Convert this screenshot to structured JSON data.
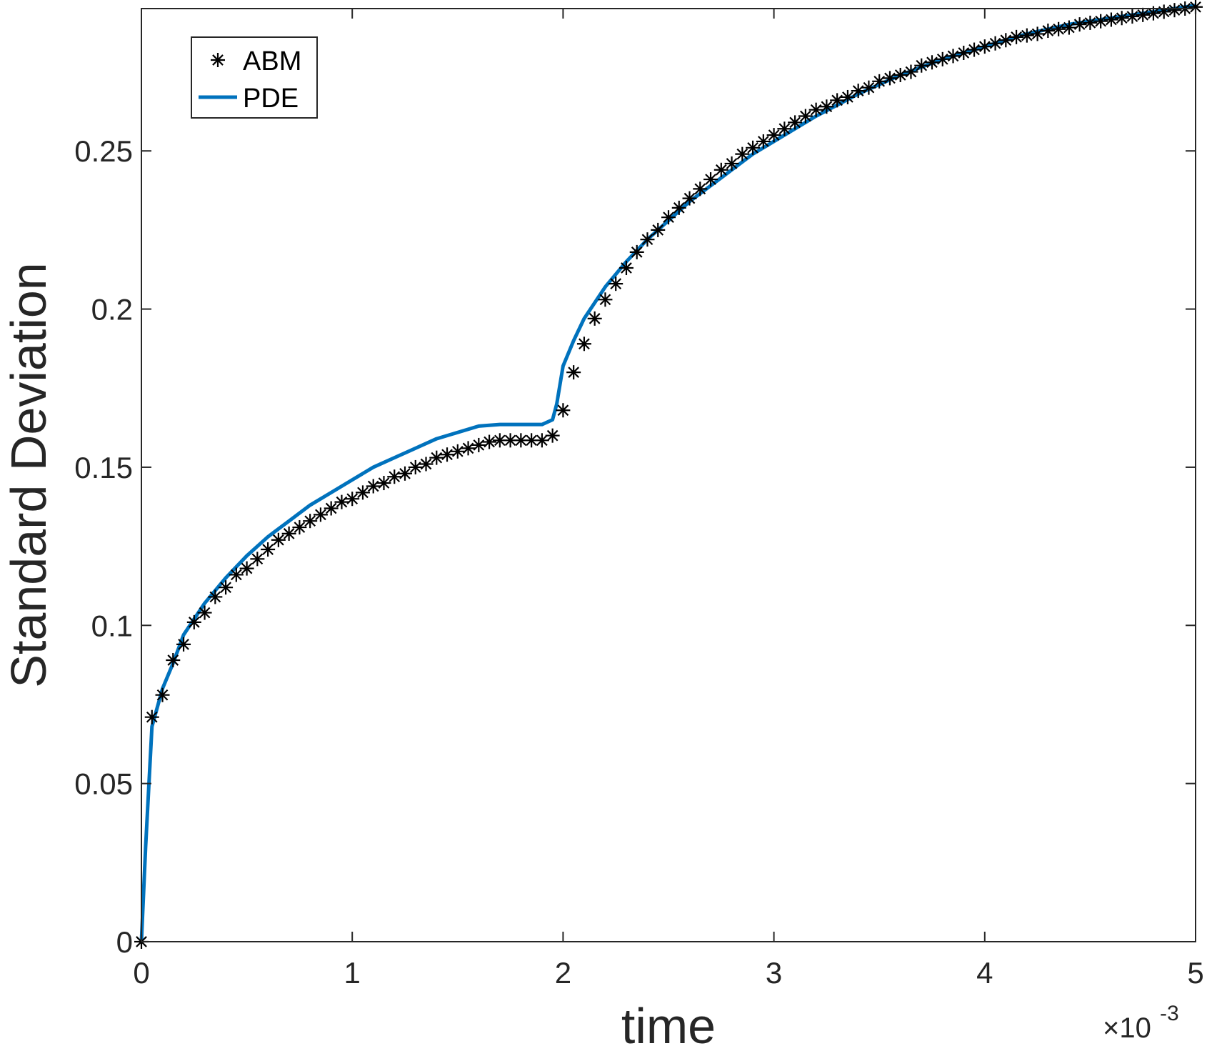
{
  "chart_data": {
    "type": "line",
    "title": "",
    "xlabel": "time",
    "ylabel": "Standard Deviation",
    "x_exponent_label": {
      "base": "×10",
      "power": "-3"
    },
    "xlim": [
      0,
      5
    ],
    "ylim": [
      0,
      0.295
    ],
    "x_ticks": [
      0,
      1,
      2,
      3,
      4,
      5
    ],
    "x_tick_labels": [
      "0",
      "1",
      "2",
      "3",
      "4",
      "5"
    ],
    "y_ticks": [
      0,
      0.05,
      0.1,
      0.15,
      0.2,
      0.25
    ],
    "y_tick_labels": [
      "0",
      "0.05",
      "0.1",
      "0.15",
      "0.2",
      "0.25"
    ],
    "grid": false,
    "legend_position": "top-left",
    "x_units_note": "x values in units of 10^-3",
    "series": [
      {
        "name": "PDE",
        "style": "line",
        "color": "#0072BD",
        "x": [
          0,
          0.02,
          0.05,
          0.1,
          0.15,
          0.2,
          0.3,
          0.4,
          0.5,
          0.6,
          0.7,
          0.8,
          0.9,
          1.0,
          1.1,
          1.2,
          1.3,
          1.4,
          1.5,
          1.6,
          1.7,
          1.8,
          1.9,
          1.95,
          1.97,
          2.0,
          2.05,
          2.1,
          2.2,
          2.3,
          2.4,
          2.5,
          2.6,
          2.7,
          2.8,
          2.9,
          3.0,
          3.2,
          3.4,
          3.6,
          3.8,
          4.0,
          4.2,
          4.4,
          4.6,
          4.8,
          5.0
        ],
        "y": [
          0,
          0.03,
          0.068,
          0.08,
          0.088,
          0.097,
          0.107,
          0.115,
          0.122,
          0.128,
          0.133,
          0.138,
          0.142,
          0.146,
          0.15,
          0.153,
          0.156,
          0.159,
          0.161,
          0.163,
          0.1635,
          0.1635,
          0.1635,
          0.165,
          0.17,
          0.182,
          0.19,
          0.197,
          0.207,
          0.215,
          0.222,
          0.228,
          0.234,
          0.239,
          0.244,
          0.249,
          0.253,
          0.261,
          0.268,
          0.274,
          0.279,
          0.283,
          0.287,
          0.29,
          0.292,
          0.294,
          0.296
        ]
      },
      {
        "name": "ABM",
        "style": "markers",
        "marker": "asterisk",
        "color": "#000000",
        "x": [
          0,
          0.05,
          0.1,
          0.15,
          0.2,
          0.25,
          0.3,
          0.35,
          0.4,
          0.45,
          0.5,
          0.55,
          0.6,
          0.65,
          0.7,
          0.75,
          0.8,
          0.85,
          0.9,
          0.95,
          1.0,
          1.05,
          1.1,
          1.15,
          1.2,
          1.25,
          1.3,
          1.35,
          1.4,
          1.45,
          1.5,
          1.55,
          1.6,
          1.65,
          1.7,
          1.75,
          1.8,
          1.85,
          1.9,
          1.95,
          2.0,
          2.05,
          2.1,
          2.15,
          2.2,
          2.25,
          2.3,
          2.35,
          2.4,
          2.45,
          2.5,
          2.55,
          2.6,
          2.65,
          2.7,
          2.75,
          2.8,
          2.85,
          2.9,
          2.95,
          3.0,
          3.05,
          3.1,
          3.15,
          3.2,
          3.25,
          3.3,
          3.35,
          3.4,
          3.45,
          3.5,
          3.55,
          3.6,
          3.65,
          3.7,
          3.75,
          3.8,
          3.85,
          3.9,
          3.95,
          4.0,
          4.05,
          4.1,
          4.15,
          4.2,
          4.25,
          4.3,
          4.35,
          4.4,
          4.45,
          4.5,
          4.55,
          4.6,
          4.65,
          4.7,
          4.75,
          4.8,
          4.85,
          4.9,
          4.95,
          5.0
        ],
        "y": [
          0,
          0.071,
          0.078,
          0.089,
          0.094,
          0.101,
          0.104,
          0.109,
          0.112,
          0.116,
          0.118,
          0.121,
          0.124,
          0.127,
          0.129,
          0.131,
          0.133,
          0.135,
          0.137,
          0.139,
          0.14,
          0.142,
          0.144,
          0.145,
          0.147,
          0.148,
          0.15,
          0.151,
          0.153,
          0.154,
          0.155,
          0.156,
          0.157,
          0.158,
          0.1585,
          0.1585,
          0.1585,
          0.1585,
          0.1585,
          0.16,
          0.168,
          0.18,
          0.189,
          0.197,
          0.203,
          0.208,
          0.213,
          0.218,
          0.222,
          0.225,
          0.229,
          0.232,
          0.235,
          0.238,
          0.241,
          0.244,
          0.246,
          0.249,
          0.251,
          0.253,
          0.255,
          0.257,
          0.259,
          0.261,
          0.263,
          0.264,
          0.266,
          0.267,
          0.269,
          0.27,
          0.272,
          0.273,
          0.274,
          0.275,
          0.277,
          0.278,
          0.279,
          0.28,
          0.281,
          0.282,
          0.283,
          0.284,
          0.285,
          0.286,
          0.2865,
          0.287,
          0.288,
          0.2885,
          0.289,
          0.29,
          0.2905,
          0.291,
          0.2915,
          0.292,
          0.2925,
          0.293,
          0.2935,
          0.294,
          0.2945,
          0.295,
          0.2955
        ]
      }
    ]
  }
}
